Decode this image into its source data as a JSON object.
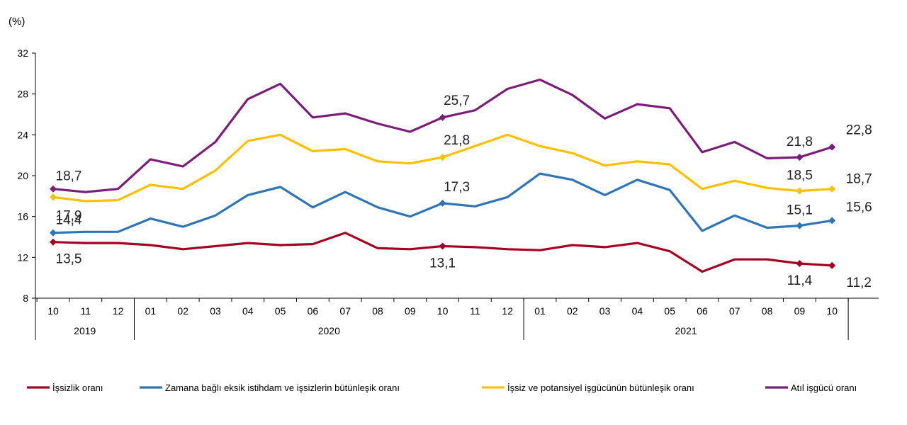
{
  "chart_data": {
    "type": "line",
    "unit_label": "(%)",
    "ylim": [
      8,
      32
    ],
    "yticks": [
      8,
      12,
      16,
      20,
      24,
      28,
      32
    ],
    "categories": [
      "10",
      "11",
      "12",
      "01",
      "02",
      "03",
      "04",
      "05",
      "06",
      "07",
      "08",
      "09",
      "10",
      "11",
      "12",
      "01",
      "02",
      "03",
      "04",
      "05",
      "06",
      "07",
      "08",
      "09",
      "10"
    ],
    "years": [
      {
        "label": "2019",
        "start": 0,
        "end": 2
      },
      {
        "label": "2020",
        "start": 3,
        "end": 14
      },
      {
        "label": "2021",
        "start": 15,
        "end": 24
      }
    ],
    "series": [
      {
        "name": "İşsizlik oranı",
        "color": "#A50021",
        "values": [
          13.5,
          13.4,
          13.4,
          13.2,
          12.8,
          13.1,
          13.4,
          13.2,
          13.3,
          14.4,
          12.9,
          12.8,
          13.1,
          13.0,
          12.8,
          12.7,
          13.2,
          13.0,
          13.4,
          12.6,
          10.6,
          11.8,
          11.8,
          11.4,
          11.2
        ]
      },
      {
        "name": "Zamana bağlı eksik istihdam ve işsizlerin bütünleşik oranı",
        "color": "#2E75B6",
        "values": [
          14.4,
          14.5,
          14.5,
          15.8,
          15.0,
          16.1,
          18.1,
          18.9,
          16.9,
          18.4,
          16.9,
          16.0,
          17.3,
          17.0,
          17.9,
          20.2,
          19.6,
          18.1,
          19.6,
          18.6,
          14.6,
          16.1,
          14.9,
          15.1,
          15.6
        ]
      },
      {
        "name": "İşsiz ve potansiyel işgücünün bütünleşik oranı",
        "color": "#FFC000",
        "values": [
          17.9,
          17.5,
          17.6,
          19.1,
          18.7,
          20.5,
          23.4,
          24.0,
          22.4,
          22.6,
          21.4,
          21.2,
          21.8,
          22.9,
          24.0,
          22.9,
          22.2,
          21.0,
          21.4,
          21.1,
          18.7,
          19.5,
          18.8,
          18.5,
          18.7
        ]
      },
      {
        "name": "Atıl işgücü oranı",
        "color": "#7B1E7A",
        "values": [
          18.7,
          18.4,
          18.7,
          21.6,
          20.9,
          23.3,
          27.5,
          29.0,
          25.7,
          26.1,
          25.1,
          24.3,
          25.7,
          26.4,
          28.5,
          29.4,
          27.9,
          25.6,
          27.0,
          26.6,
          22.3,
          23.3,
          21.7,
          21.8,
          22.8
        ]
      }
    ],
    "data_labels": [
      {
        "series": 3,
        "index": 0,
        "text": "18,7"
      },
      {
        "series": 2,
        "index": 0,
        "text": "17,9"
      },
      {
        "series": 1,
        "index": 0,
        "text": "14,4"
      },
      {
        "series": 0,
        "index": 0,
        "text": "13,5"
      },
      {
        "series": 3,
        "index": 12,
        "text": "25,7"
      },
      {
        "series": 2,
        "index": 12,
        "text": "21,8"
      },
      {
        "series": 1,
        "index": 12,
        "text": "17,3"
      },
      {
        "series": 0,
        "index": 12,
        "text": "13,1"
      },
      {
        "series": 3,
        "index": 23,
        "text": "21,8"
      },
      {
        "series": 2,
        "index": 23,
        "text": "18,5"
      },
      {
        "series": 1,
        "index": 23,
        "text": "15,1"
      },
      {
        "series": 0,
        "index": 23,
        "text": "11,4"
      },
      {
        "series": 3,
        "index": 24,
        "text": "22,8"
      },
      {
        "series": 2,
        "index": 24,
        "text": "18,7"
      },
      {
        "series": 1,
        "index": 24,
        "text": "15,6"
      },
      {
        "series": 0,
        "index": 24,
        "text": "11,2"
      }
    ],
    "marker_indices": [
      0,
      12,
      23,
      24
    ],
    "legend_position": "bottom"
  }
}
